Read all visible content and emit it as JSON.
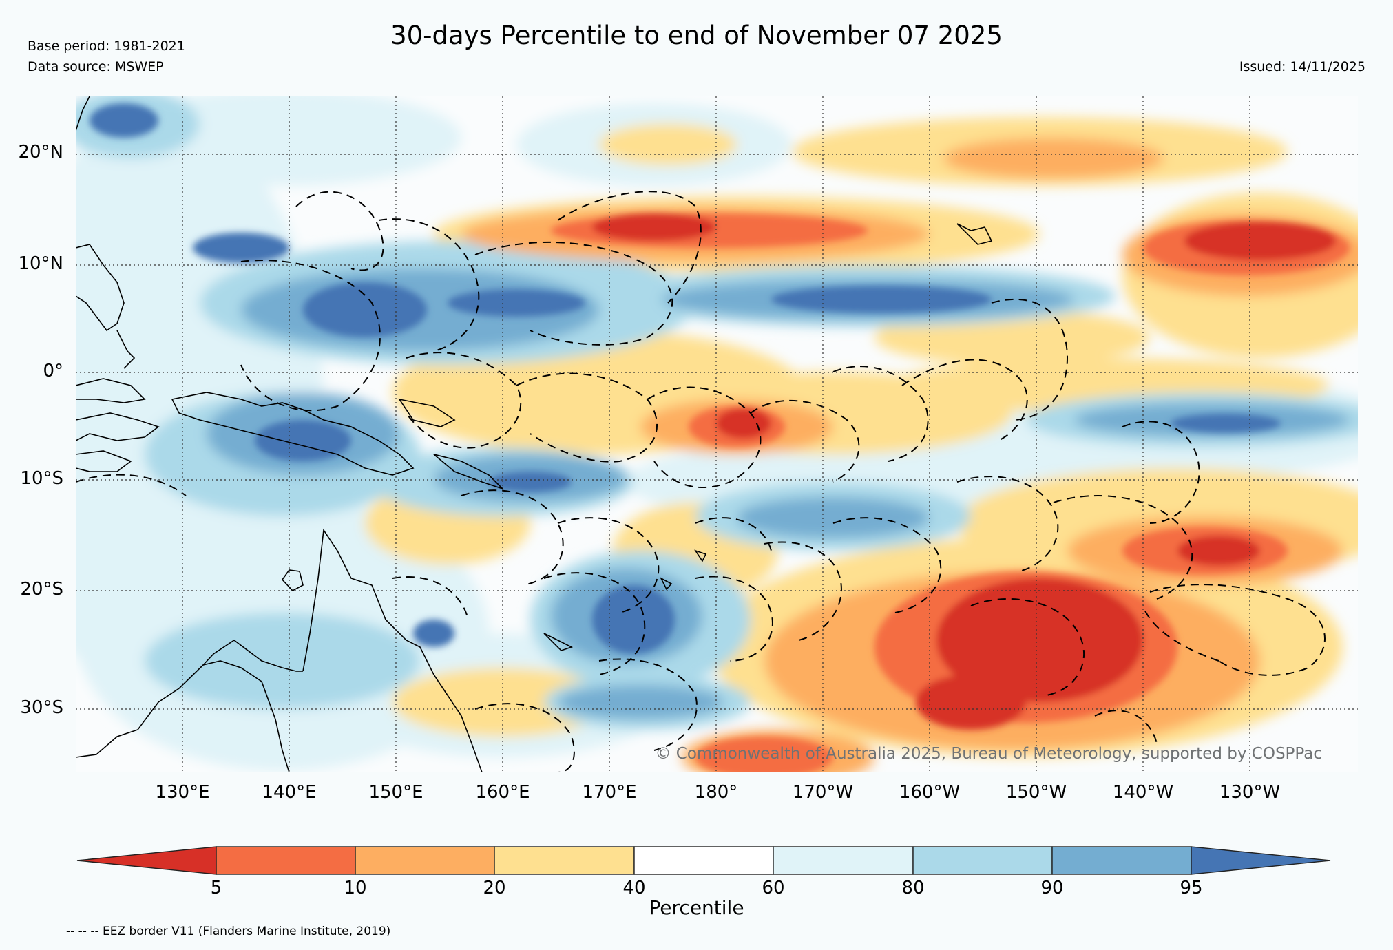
{
  "title": "30-days Percentile to end of November 07 2025",
  "base_period": "Base period: 1981-2021",
  "data_source": "Data source: MSWEP",
  "issued": "Issued: 14/11/2025",
  "copyright": "© Commonwealth of Australia 2025, Bureau of Meteorology, supported by COSPPac",
  "lat_labels": [
    "20°N",
    "10°N",
    "0°",
    "10°S",
    "20°S",
    "30°S"
  ],
  "lon_labels": [
    "130°E",
    "140°E",
    "150°E",
    "160°E",
    "170°E",
    "180°",
    "170°W",
    "160°W",
    "150°W",
    "140°W",
    "130°W"
  ],
  "colorbar": {
    "title": "Percentile",
    "ticks": [
      "5",
      "10",
      "20",
      "40",
      "60",
      "80",
      "90",
      "95"
    ],
    "colors": [
      "#d73027",
      "#f46d43",
      "#fdae61",
      "#fee090",
      "#ffffff",
      "#e0f3f8",
      "#abd9e9",
      "#74add1",
      "#4575b4"
    ]
  },
  "footnote": "-- -- -- EEZ border V11 (Flanders Marine Institute, 2019)"
}
